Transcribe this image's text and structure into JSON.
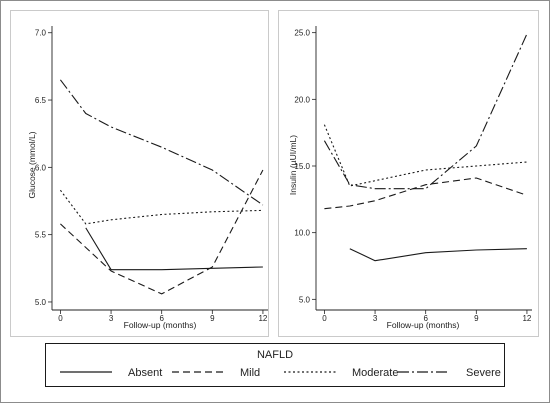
{
  "chart_data": [
    {
      "type": "line",
      "ylabel": "Glucose (mmol/L)",
      "xlabel": "Follow-up (months)",
      "xticks": [
        0,
        3,
        6,
        9,
        12
      ],
      "yticks": [
        "5.0",
        "5.5",
        "6.0",
        "6.5",
        "7.0"
      ],
      "xlim": [
        -0.5,
        12.3
      ],
      "ylim": [
        4.97,
        7.05
      ],
      "series": [
        {
          "name": "Absent",
          "x": [
            1.5,
            3,
            6,
            9,
            12
          ],
          "y": [
            5.55,
            5.24,
            5.24,
            5.25,
            5.26
          ]
        },
        {
          "name": "Mild",
          "x": [
            0,
            3,
            6,
            9,
            12
          ],
          "y": [
            5.58,
            5.23,
            5.06,
            5.26,
            5.98
          ]
        },
        {
          "name": "Moderate",
          "x": [
            0,
            1.5,
            3,
            6,
            9,
            12
          ],
          "y": [
            5.83,
            5.58,
            5.61,
            5.65,
            5.67,
            5.68
          ]
        },
        {
          "name": "Severe",
          "x": [
            0,
            1.5,
            3,
            6,
            9,
            12
          ],
          "y": [
            6.65,
            6.4,
            6.3,
            6.15,
            5.98,
            5.72
          ]
        }
      ]
    },
    {
      "type": "line",
      "ylabel": "Insulin (µUI/mL)",
      "xlabel": "Follow-up (months)",
      "xticks": [
        0,
        3,
        6,
        9,
        12
      ],
      "yticks": [
        "5.0",
        "10.0",
        "15.0",
        "20.0",
        "25.0"
      ],
      "xlim": [
        -0.5,
        12.3
      ],
      "ylim": [
        4.5,
        25.5
      ],
      "series": [
        {
          "name": "Absent",
          "x": [
            1.5,
            3,
            6,
            9,
            12
          ],
          "y": [
            8.8,
            7.9,
            8.5,
            8.7,
            8.8
          ]
        },
        {
          "name": "Mild",
          "x": [
            0,
            1.5,
            3,
            6,
            9,
            12
          ],
          "y": [
            11.8,
            12.0,
            12.4,
            13.6,
            14.1,
            12.8
          ]
        },
        {
          "name": "Moderate",
          "x": [
            0,
            1.5,
            3,
            6,
            9,
            12
          ],
          "y": [
            18.1,
            13.5,
            13.9,
            14.7,
            15.0,
            15.3
          ]
        },
        {
          "name": "Severe",
          "x": [
            0,
            1.5,
            3,
            6,
            9,
            12
          ],
          "y": [
            16.9,
            13.6,
            13.3,
            13.3,
            16.5,
            24.9
          ]
        }
      ]
    }
  ],
  "legend": {
    "title": "NAFLD",
    "placement": "bottom",
    "items": [
      "Absent",
      "Mild",
      "Moderate",
      "Severe"
    ]
  },
  "line_styles": {
    "Absent": "solid",
    "Mild": "dashed",
    "Moderate": "dotted",
    "Severe": "dash-dot"
  },
  "colors": {
    "line": "#1a1a1a",
    "frame": "#8c8c8c",
    "background": "#ffffff"
  }
}
